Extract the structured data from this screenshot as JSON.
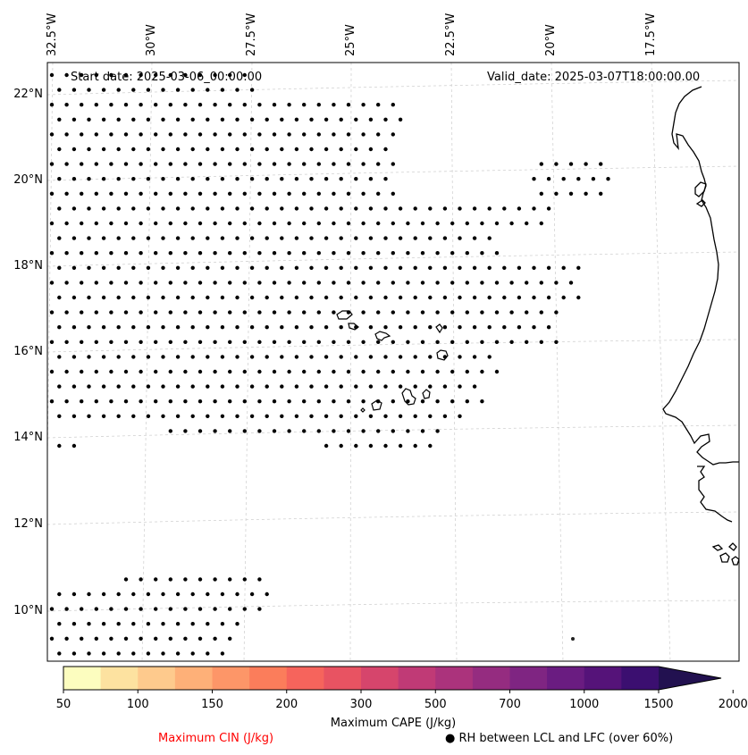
{
  "header": {
    "start_date": "Start date: 2025-03-06_00:00:00",
    "valid_date": "Valid_date: 2025-03-07T18:00:00.00"
  },
  "axes": {
    "lon_labels": [
      "32.5°W",
      "30°W",
      "27.5°W",
      "25°W",
      "22.5°W",
      "20°W",
      "17.5°W"
    ],
    "lat_labels": [
      "22°N",
      "20°N",
      "18°N",
      "16°N",
      "14°N",
      "12°N",
      "10°N"
    ]
  },
  "colorbar": {
    "title": "Maximum CAPE (J/kg)",
    "ticks": [
      "50",
      "100",
      "150",
      "200",
      "300",
      "500",
      "700",
      "1000",
      "1500",
      "2000"
    ],
    "colors": [
      "#fcfdbf",
      "#fde2a0",
      "#feca8d",
      "#feb078",
      "#fd9668",
      "#fb7d5b",
      "#f6645c",
      "#e85362",
      "#d6456c",
      "#c03a76",
      "#ab337c",
      "#952c80",
      "#7f2582",
      "#6a1c81",
      "#551379",
      "#3b0f70",
      "#221150"
    ],
    "extend": "max"
  },
  "legend": {
    "cin_label": "Maximum CIN (J/kg)",
    "cin_color": "#ff0000",
    "rh_label": "RH between LCL and LFC (over 60%)",
    "rh_marker": "●"
  },
  "chart_data": {
    "type": "map",
    "projection": "Lambert-like conic",
    "extent": {
      "lon": [
        -33,
        -14.5
      ],
      "lat": [
        9,
        22.5
      ]
    },
    "gridlines": true,
    "dot_regions": [
      {
        "description": "RH>60% dots",
        "lat_range": [
          13.8,
          22.3
        ],
        "lon_range": [
          -32.5,
          -20
        ]
      },
      {
        "description": "RH>60% dots",
        "lat_range": [
          9.2,
          10.8
        ],
        "lon_range": [
          -32.5,
          -27.5
        ]
      }
    ]
  }
}
